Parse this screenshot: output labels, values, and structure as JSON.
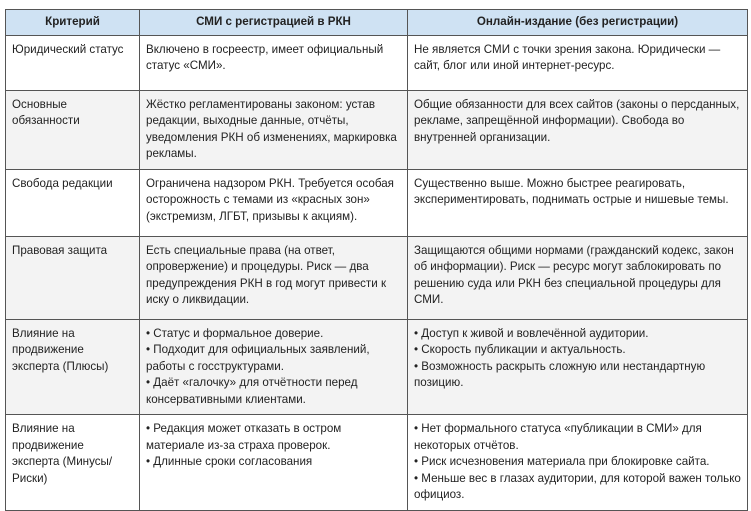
{
  "table": {
    "headers": [
      "Критерий",
      "СМИ с регистрацией в РКН",
      "Онлайн-издание (без регистрации)"
    ],
    "rows": [
      {
        "criterion": "Юридический статус",
        "rkn": [
          "Включено в госреестр, имеет официальный статус «СМИ»."
        ],
        "online": [
          "Не является СМИ с точки зрения закона. Юридически — сайт, блог или иной интернет-ресурс."
        ]
      },
      {
        "criterion": "Основные обязанности",
        "rkn": [
          "Жёстко регламентированы законом: устав редакции, выходные данные, отчёты, уведомления РКН об изменениях, маркировка рекламы."
        ],
        "online": [
          "Общие обязанности для всех сайтов (законы о персданных, рекламе, запрещённой информации). Свобода во внутренней организации."
        ]
      },
      {
        "criterion": "Свобода редакции",
        "rkn": [
          "Ограничена надзором РКН. Требуется особая осторожность с темами из «красных зон» (экстремизм, ЛГБТ, призывы к акциям)."
        ],
        "online": [
          "Существенно выше. Можно быстрее реагировать, экспериментировать, поднимать острые и нишевые темы."
        ]
      },
      {
        "criterion": "Правовая защита",
        "rkn": [
          "Есть специальные права (на ответ, опровержение) и процедуры. Риск — два предупреждения РКН в год могут привести к иску о ликвидации."
        ],
        "online": [
          "Защищаются общими нормами (гражданский кодекс, закон об информации). Риск — ресурс могут заблокировать по решению суда или РКН без специальной процедуры для СМИ."
        ]
      },
      {
        "criterion": "Влияние на продвижение эксперта (Плюсы)",
        "rkn": [
          "• Статус и формальное доверие.",
          " • Подходит для официальных заявлений, работы с госструктурами.",
          " • Даёт «галочку» для отчётности перед консервативными клиентами."
        ],
        "online": [
          " • Доступ к живой и вовлечённой аудитории.",
          " • Скорость публикации и актуальность.",
          " • Возможность раскрыть сложную или нестандартную позицию."
        ]
      },
      {
        "criterion": "Влияние на продвижение эксперта (Минусы/Риски)",
        "rkn": [
          " • Редакция может отказать в остром материале из-за страха проверок.",
          "• Длинные сроки согласования"
        ],
        "online": [
          "• Нет формального статуса «публикации в СМИ» для некоторых отчётов.",
          "• Риск исчезновения материала при блокировке сайта.",
          "• Меньше вес в глазах аудитории, для которой важен только официоз."
        ]
      }
    ]
  },
  "colors": {
    "header_bg": "#cfe2f3",
    "alt_row_bg": "#f3f3f3",
    "border": "#555555"
  }
}
